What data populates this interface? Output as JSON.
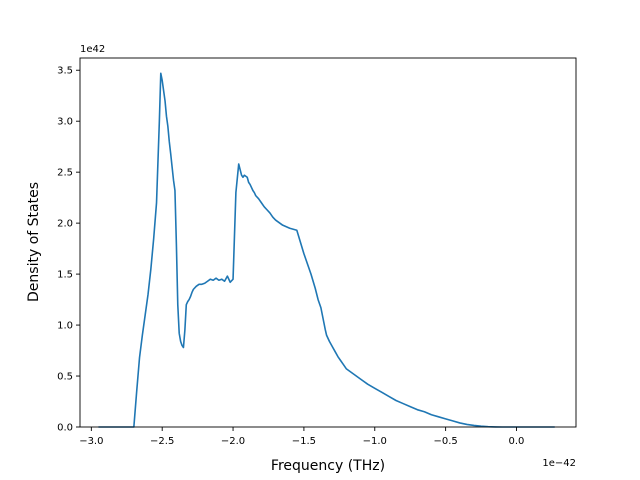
{
  "chart_data": {
    "type": "line",
    "xlabel": "Frequency (THz)",
    "ylabel": "Density of States",
    "x_offset_text": "1e−42",
    "y_offset_text": "1e42",
    "xlim": [
      -3.08,
      0.42
    ],
    "ylim": [
      0,
      3.62
    ],
    "grid": false,
    "line_color": "#1f77b4",
    "x_ticks": [
      {
        "value": -3.0,
        "label": "−3.0"
      },
      {
        "value": -2.5,
        "label": "−2.5"
      },
      {
        "value": -2.0,
        "label": "−2.0"
      },
      {
        "value": -1.5,
        "label": "−1.5"
      },
      {
        "value": -1.0,
        "label": "−1.0"
      },
      {
        "value": -0.5,
        "label": "−0.5"
      },
      {
        "value": 0.0,
        "label": "0.0"
      }
    ],
    "y_ticks": [
      {
        "value": 0.0,
        "label": "0.0"
      },
      {
        "value": 0.5,
        "label": "0.5"
      },
      {
        "value": 1.0,
        "label": "1.0"
      },
      {
        "value": 1.5,
        "label": "1.5"
      },
      {
        "value": 2.0,
        "label": "2.0"
      },
      {
        "value": 2.5,
        "label": "2.5"
      },
      {
        "value": 3.0,
        "label": "3.0"
      },
      {
        "value": 3.5,
        "label": "3.5"
      }
    ],
    "series": [
      {
        "x": [
          -2.95,
          -2.8,
          -2.7,
          -2.68,
          -2.66,
          -2.64,
          -2.62,
          -2.6,
          -2.58,
          -2.56,
          -2.54,
          -2.53,
          -2.52,
          -2.51,
          -2.5,
          -2.49,
          -2.48,
          -2.47,
          -2.46,
          -2.45,
          -2.44,
          -2.43,
          -2.42,
          -2.41,
          -2.4,
          -2.39,
          -2.38,
          -2.37,
          -2.36,
          -2.35,
          -2.34,
          -2.33,
          -2.32,
          -2.31,
          -2.3,
          -2.29,
          -2.28,
          -2.26,
          -2.24,
          -2.22,
          -2.2,
          -2.18,
          -2.16,
          -2.14,
          -2.12,
          -2.1,
          -2.08,
          -2.06,
          -2.04,
          -2.02,
          -2.0,
          -1.98,
          -1.96,
          -1.94,
          -1.93,
          -1.92,
          -1.91,
          -1.9,
          -1.89,
          -1.88,
          -1.87,
          -1.86,
          -1.85,
          -1.84,
          -1.82,
          -1.8,
          -1.78,
          -1.76,
          -1.74,
          -1.72,
          -1.7,
          -1.65,
          -1.6,
          -1.55,
          -1.5,
          -1.45,
          -1.42,
          -1.4,
          -1.38,
          -1.37,
          -1.36,
          -1.35,
          -1.34,
          -1.32,
          -1.3,
          -1.28,
          -1.26,
          -1.24,
          -1.22,
          -1.2,
          -1.15,
          -1.1,
          -1.05,
          -1.0,
          -0.95,
          -0.9,
          -0.85,
          -0.8,
          -0.75,
          -0.7,
          -0.65,
          -0.6,
          -0.55,
          -0.5,
          -0.45,
          -0.4,
          -0.35,
          -0.3,
          -0.25,
          -0.2,
          -0.15,
          -0.1,
          -0.05,
          0.0,
          0.1,
          0.2,
          0.27
        ],
        "y": [
          0.0,
          0.0,
          0.0,
          0.35,
          0.68,
          0.9,
          1.1,
          1.3,
          1.55,
          1.85,
          2.2,
          2.6,
          3.0,
          3.47,
          3.4,
          3.3,
          3.2,
          3.05,
          2.95,
          2.8,
          2.68,
          2.55,
          2.42,
          2.32,
          1.8,
          1.2,
          0.92,
          0.84,
          0.8,
          0.78,
          0.95,
          1.2,
          1.23,
          1.25,
          1.28,
          1.32,
          1.35,
          1.38,
          1.4,
          1.4,
          1.41,
          1.43,
          1.45,
          1.44,
          1.46,
          1.44,
          1.45,
          1.43,
          1.48,
          1.42,
          1.45,
          2.3,
          2.58,
          2.47,
          2.45,
          2.47,
          2.46,
          2.45,
          2.4,
          2.38,
          2.35,
          2.32,
          2.3,
          2.27,
          2.24,
          2.2,
          2.16,
          2.13,
          2.1,
          2.06,
          2.03,
          1.98,
          1.95,
          1.93,
          1.7,
          1.5,
          1.36,
          1.25,
          1.17,
          1.1,
          1.03,
          0.96,
          0.9,
          0.84,
          0.79,
          0.74,
          0.69,
          0.65,
          0.61,
          0.57,
          0.52,
          0.47,
          0.42,
          0.38,
          0.34,
          0.3,
          0.26,
          0.23,
          0.2,
          0.17,
          0.15,
          0.12,
          0.1,
          0.08,
          0.06,
          0.04,
          0.025,
          0.015,
          0.008,
          0.003,
          0.001,
          0.0,
          0.0,
          0.0,
          0.0,
          0.0,
          0.0
        ]
      }
    ]
  }
}
